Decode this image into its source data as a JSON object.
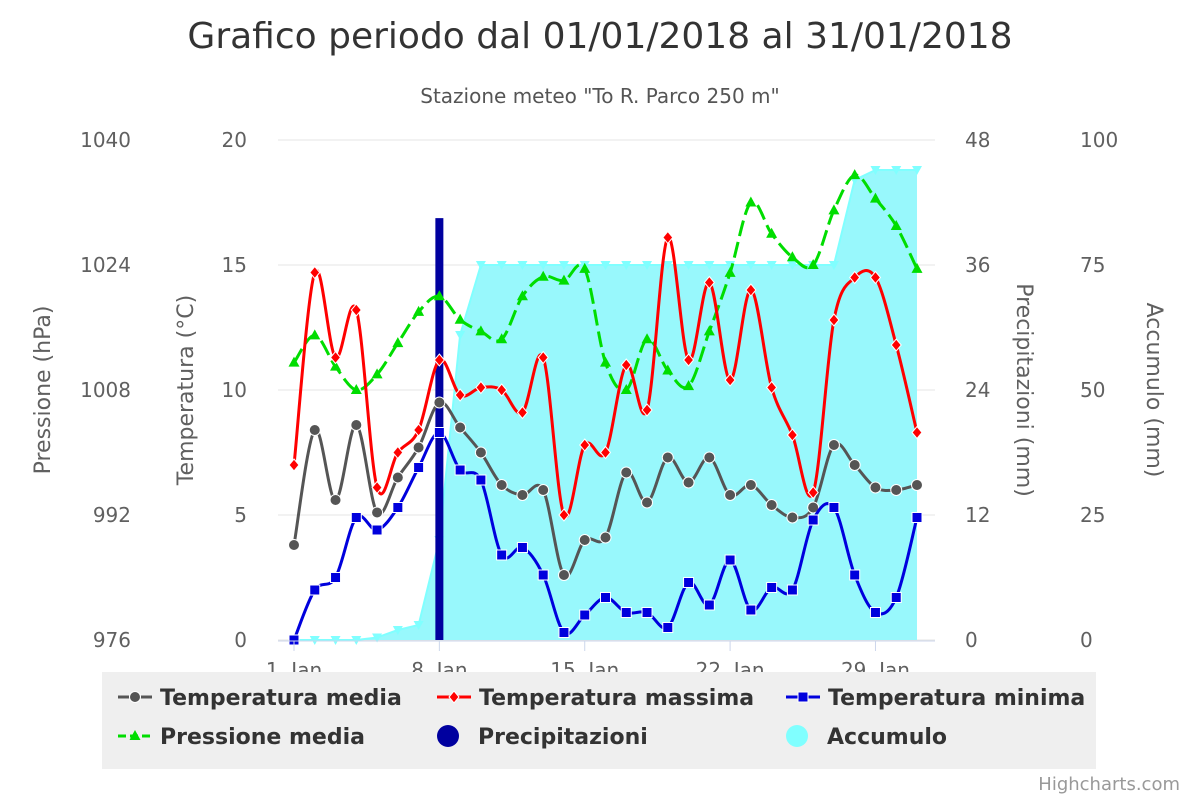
{
  "chart_data": {
    "type": "line",
    "title": "Grafico periodo dal 01/01/2018 al 31/01/2018",
    "subtitle": "Stazione meteo \"To R. Parco 250 m\"",
    "x": {
      "days": [
        1,
        2,
        3,
        4,
        5,
        6,
        7,
        8,
        9,
        10,
        11,
        12,
        13,
        14,
        15,
        16,
        17,
        18,
        19,
        20,
        21,
        22,
        23,
        24,
        25,
        26,
        27,
        28,
        29,
        30,
        31
      ],
      "ticks": [
        {
          "day": 1,
          "label": "1. Jan"
        },
        {
          "day": 8,
          "label": "8. Jan"
        },
        {
          "day": 15,
          "label": "15. Jan"
        },
        {
          "day": 22,
          "label": "22. Jan"
        },
        {
          "day": 29,
          "label": "29. Jan"
        }
      ]
    },
    "axes": {
      "pressure": {
        "title": "Pressione (hPa)",
        "ticks": [
          "976",
          "992",
          "1008",
          "1024",
          "1040"
        ],
        "range": [
          976,
          1040
        ]
      },
      "temperature": {
        "title": "Temperatura (°C)",
        "ticks": [
          "0",
          "5",
          "10",
          "15",
          "20"
        ],
        "range": [
          0,
          20
        ]
      },
      "precipitation": {
        "title": "Precipitazioni (mm)",
        "ticks": [
          "0",
          "12",
          "24",
          "36",
          "48"
        ],
        "range": [
          0,
          48
        ]
      },
      "accumulation": {
        "title": "Accumulo (mm)",
        "ticks": [
          "0",
          "25",
          "50",
          "75",
          "100"
        ],
        "range": [
          0,
          100
        ]
      }
    },
    "series": [
      {
        "name": "Temperatura media",
        "key": "tmed",
        "color": "#555555",
        "marker": "circle",
        "axis": "temperature",
        "values": [
          3.8,
          8.4,
          5.6,
          8.6,
          5.1,
          6.5,
          7.7,
          9.5,
          8.5,
          7.5,
          6.2,
          5.8,
          6.0,
          2.6,
          4.0,
          4.1,
          6.7,
          5.5,
          7.3,
          6.3,
          7.3,
          5.8,
          6.2,
          5.4,
          4.9,
          5.3,
          7.8,
          7.0,
          6.1,
          6.0,
          6.2
        ]
      },
      {
        "name": "Temperatura massima",
        "key": "tmax",
        "color": "#ff0000",
        "marker": "diamond",
        "axis": "temperature",
        "values": [
          7.0,
          14.7,
          11.3,
          13.2,
          6.1,
          7.5,
          8.4,
          11.2,
          9.8,
          10.1,
          10.0,
          9.1,
          11.3,
          5.0,
          7.8,
          7.5,
          11.0,
          9.2,
          16.1,
          11.2,
          14.3,
          10.4,
          14.0,
          10.1,
          8.2,
          5.9,
          12.8,
          14.5,
          14.5,
          11.8,
          8.3
        ]
      },
      {
        "name": "Temperatura minima",
        "key": "tmin",
        "color": "#0000dd",
        "marker": "square",
        "axis": "temperature",
        "values": [
          0.0,
          2.0,
          2.5,
          4.9,
          4.4,
          5.3,
          6.9,
          8.3,
          6.8,
          6.4,
          3.4,
          3.7,
          2.6,
          0.3,
          1.0,
          1.7,
          1.1,
          1.1,
          0.5,
          2.3,
          1.4,
          3.2,
          1.2,
          2.1,
          2.0,
          4.8,
          5.3,
          2.6,
          1.1,
          1.7,
          4.9
        ]
      },
      {
        "name": "Pressione media",
        "key": "pmed",
        "color": "#00dd00",
        "marker": "triangle",
        "axis": "pressure",
        "dashed": true,
        "values": [
          1011.5,
          1015.0,
          1011.0,
          1008.0,
          1010.0,
          1014.0,
          1018.0,
          1020.0,
          1017.0,
          1015.5,
          1014.5,
          1020.0,
          1022.5,
          1022.0,
          1023.5,
          1011.5,
          1008.0,
          1014.5,
          1010.5,
          1008.5,
          1015.5,
          1023.0,
          1032.0,
          1028.0,
          1025.0,
          1024.0,
          1031.0,
          1035.5,
          1032.5,
          1029.0,
          1023.5
        ]
      },
      {
        "name": "Precipitazioni",
        "key": "prec",
        "color": "#00009f",
        "type": "column",
        "axis": "precipitation",
        "values": [
          0,
          0,
          0,
          0,
          0,
          0,
          0,
          40.5,
          0,
          0,
          0,
          0,
          0,
          0,
          0,
          0,
          0,
          0,
          0,
          0,
          0,
          0,
          0,
          0,
          0,
          0,
          0,
          0,
          0,
          0,
          0
        ]
      },
      {
        "name": "Accumulo",
        "key": "acc",
        "color": "#80ffff",
        "type": "area",
        "axis": "accumulation",
        "values": [
          0,
          0,
          0,
          0,
          0.5,
          2,
          3,
          20,
          61,
          75,
          75,
          75,
          75,
          75,
          75,
          75,
          75,
          75,
          75,
          75,
          75,
          75,
          75,
          75,
          75,
          75,
          75,
          92,
          94,
          94,
          94
        ]
      }
    ],
    "legend": {
      "position": "bottom",
      "rows": [
        [
          "tmed",
          "tmax",
          "tmin"
        ],
        [
          "pmed",
          "prec",
          "acc"
        ]
      ]
    },
    "grid": true,
    "credits": "Highcharts.com"
  },
  "colors": {
    "grid": "#e6e6e6",
    "legend_bg": "#efefef",
    "bars_light": "#5bbbe6",
    "area_fill": "#98f8fc"
  }
}
